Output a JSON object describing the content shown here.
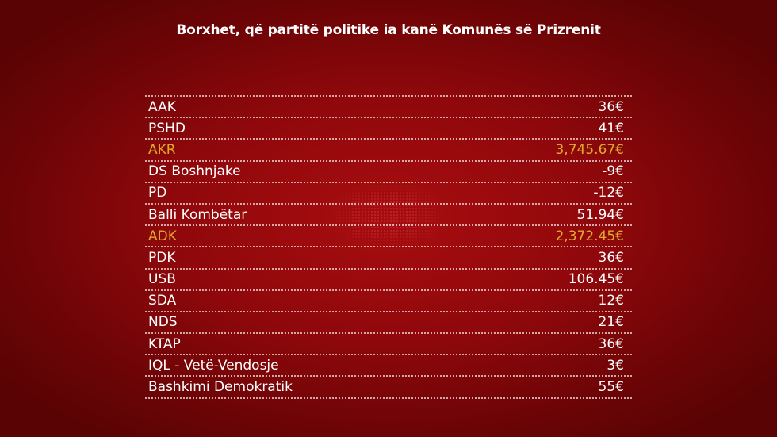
{
  "chart_data": {
    "type": "table",
    "title": "Borxhet, që partitë politike ia kanë Komunës së Prizrenit",
    "colors": {
      "background": "#8f080b",
      "text": "#ffffff",
      "highlight": "#e0a92e"
    },
    "rows": [
      {
        "party": "AAK",
        "amount": "36€",
        "highlight": false
      },
      {
        "party": "PSHD",
        "amount": "41€",
        "highlight": false
      },
      {
        "party": "AKR",
        "amount": "3,745.67€",
        "highlight": true
      },
      {
        "party": "DS Boshnjake",
        "amount": "-9€",
        "highlight": false
      },
      {
        "party": "PD",
        "amount": "-12€",
        "highlight": false
      },
      {
        "party": "Balli Kombëtar",
        "amount": "51.94€",
        "highlight": false
      },
      {
        "party": "ADK",
        "amount": "2,372.45€",
        "highlight": true
      },
      {
        "party": "PDK",
        "amount": "36€",
        "highlight": false
      },
      {
        "party": "USB",
        "amount": "106.45€",
        "highlight": false
      },
      {
        "party": "SDA",
        "amount": "12€",
        "highlight": false
      },
      {
        "party": "NDS",
        "amount": "21€",
        "highlight": false
      },
      {
        "party": "KTAP",
        "amount": "36€",
        "highlight": false
      },
      {
        "party": "IQL - Vetë-Vendosje",
        "amount": "3€",
        "highlight": false
      },
      {
        "party": "Bashkimi Demokratik",
        "amount": "55€",
        "highlight": false
      }
    ]
  }
}
